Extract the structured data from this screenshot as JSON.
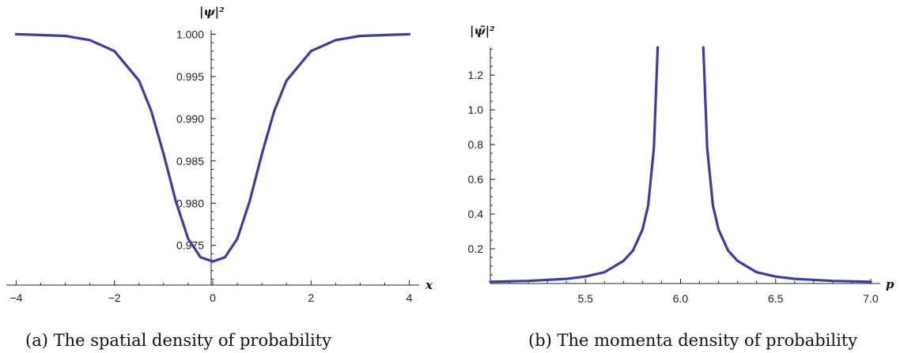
{
  "chart_data": [
    {
      "type": "line",
      "title": "",
      "caption": "(a) The spatial density of probability",
      "xlabel": "x",
      "ylabel": "|ψ|²",
      "xlim": [
        -4.2,
        4.2
      ],
      "ylim": [
        0.9703,
        1.0005
      ],
      "xticks": [
        -4,
        -2,
        0,
        2,
        4
      ],
      "xtick_labels": [
        "−4",
        "−2",
        "0",
        "2",
        "4"
      ],
      "yticks": [
        0.975,
        0.98,
        0.985,
        0.99,
        0.995,
        1.0
      ],
      "ytick_labels": [
        "0.975",
        "0.980",
        "0.985",
        "0.990",
        "0.995",
        "1.000"
      ],
      "grid": false,
      "series": [
        {
          "x": [
            -4,
            -3.5,
            -3,
            -2.5,
            -2,
            -1.5,
            -1.25,
            -1,
            -0.75,
            -0.5,
            -0.25,
            0,
            0.25,
            0.5,
            0.75,
            1,
            1.25,
            1.5,
            2,
            2.5,
            3,
            3.5,
            4
          ],
          "y": [
            1.0,
            0.9999,
            0.9998,
            0.9993,
            0.998,
            0.9945,
            0.9909,
            0.9858,
            0.9802,
            0.9758,
            0.9736,
            0.9731,
            0.9736,
            0.9758,
            0.9802,
            0.9858,
            0.9909,
            0.9945,
            0.998,
            0.9993,
            0.9998,
            0.9999,
            1.0
          ]
        }
      ]
    },
    {
      "type": "line",
      "title": "",
      "caption": "(b) The momenta density of probability",
      "xlabel": "p",
      "ylabel": "|ψ̃|²",
      "xlim": [
        5.0,
        7.05
      ],
      "ylim": [
        0.0,
        1.36
      ],
      "xticks": [
        5.5,
        6.0,
        6.5,
        7.0
      ],
      "xtick_labels": [
        "5.5",
        "6.0",
        "6.5",
        "7.0"
      ],
      "yticks": [
        0.2,
        0.4,
        0.6,
        0.8,
        1.0,
        1.2
      ],
      "ytick_labels": [
        "0.2",
        "0.4",
        "0.6",
        "0.8",
        "1.0",
        "1.2"
      ],
      "grid": false,
      "series": [
        {
          "x": [
            5.0,
            5.2,
            5.4,
            5.5,
            5.6,
            5.7,
            5.75,
            5.8,
            5.83,
            5.86,
            5.88,
            6.12,
            6.14,
            6.17,
            6.2,
            6.25,
            6.3,
            6.4,
            6.5,
            6.6,
            6.8,
            7.0
          ],
          "y": [
            0.01,
            0.015,
            0.027,
            0.04,
            0.065,
            0.13,
            0.19,
            0.31,
            0.45,
            0.78,
            1.36,
            1.36,
            0.78,
            0.45,
            0.31,
            0.19,
            0.13,
            0.065,
            0.04,
            0.027,
            0.015,
            0.01
          ]
        }
      ]
    }
  ]
}
